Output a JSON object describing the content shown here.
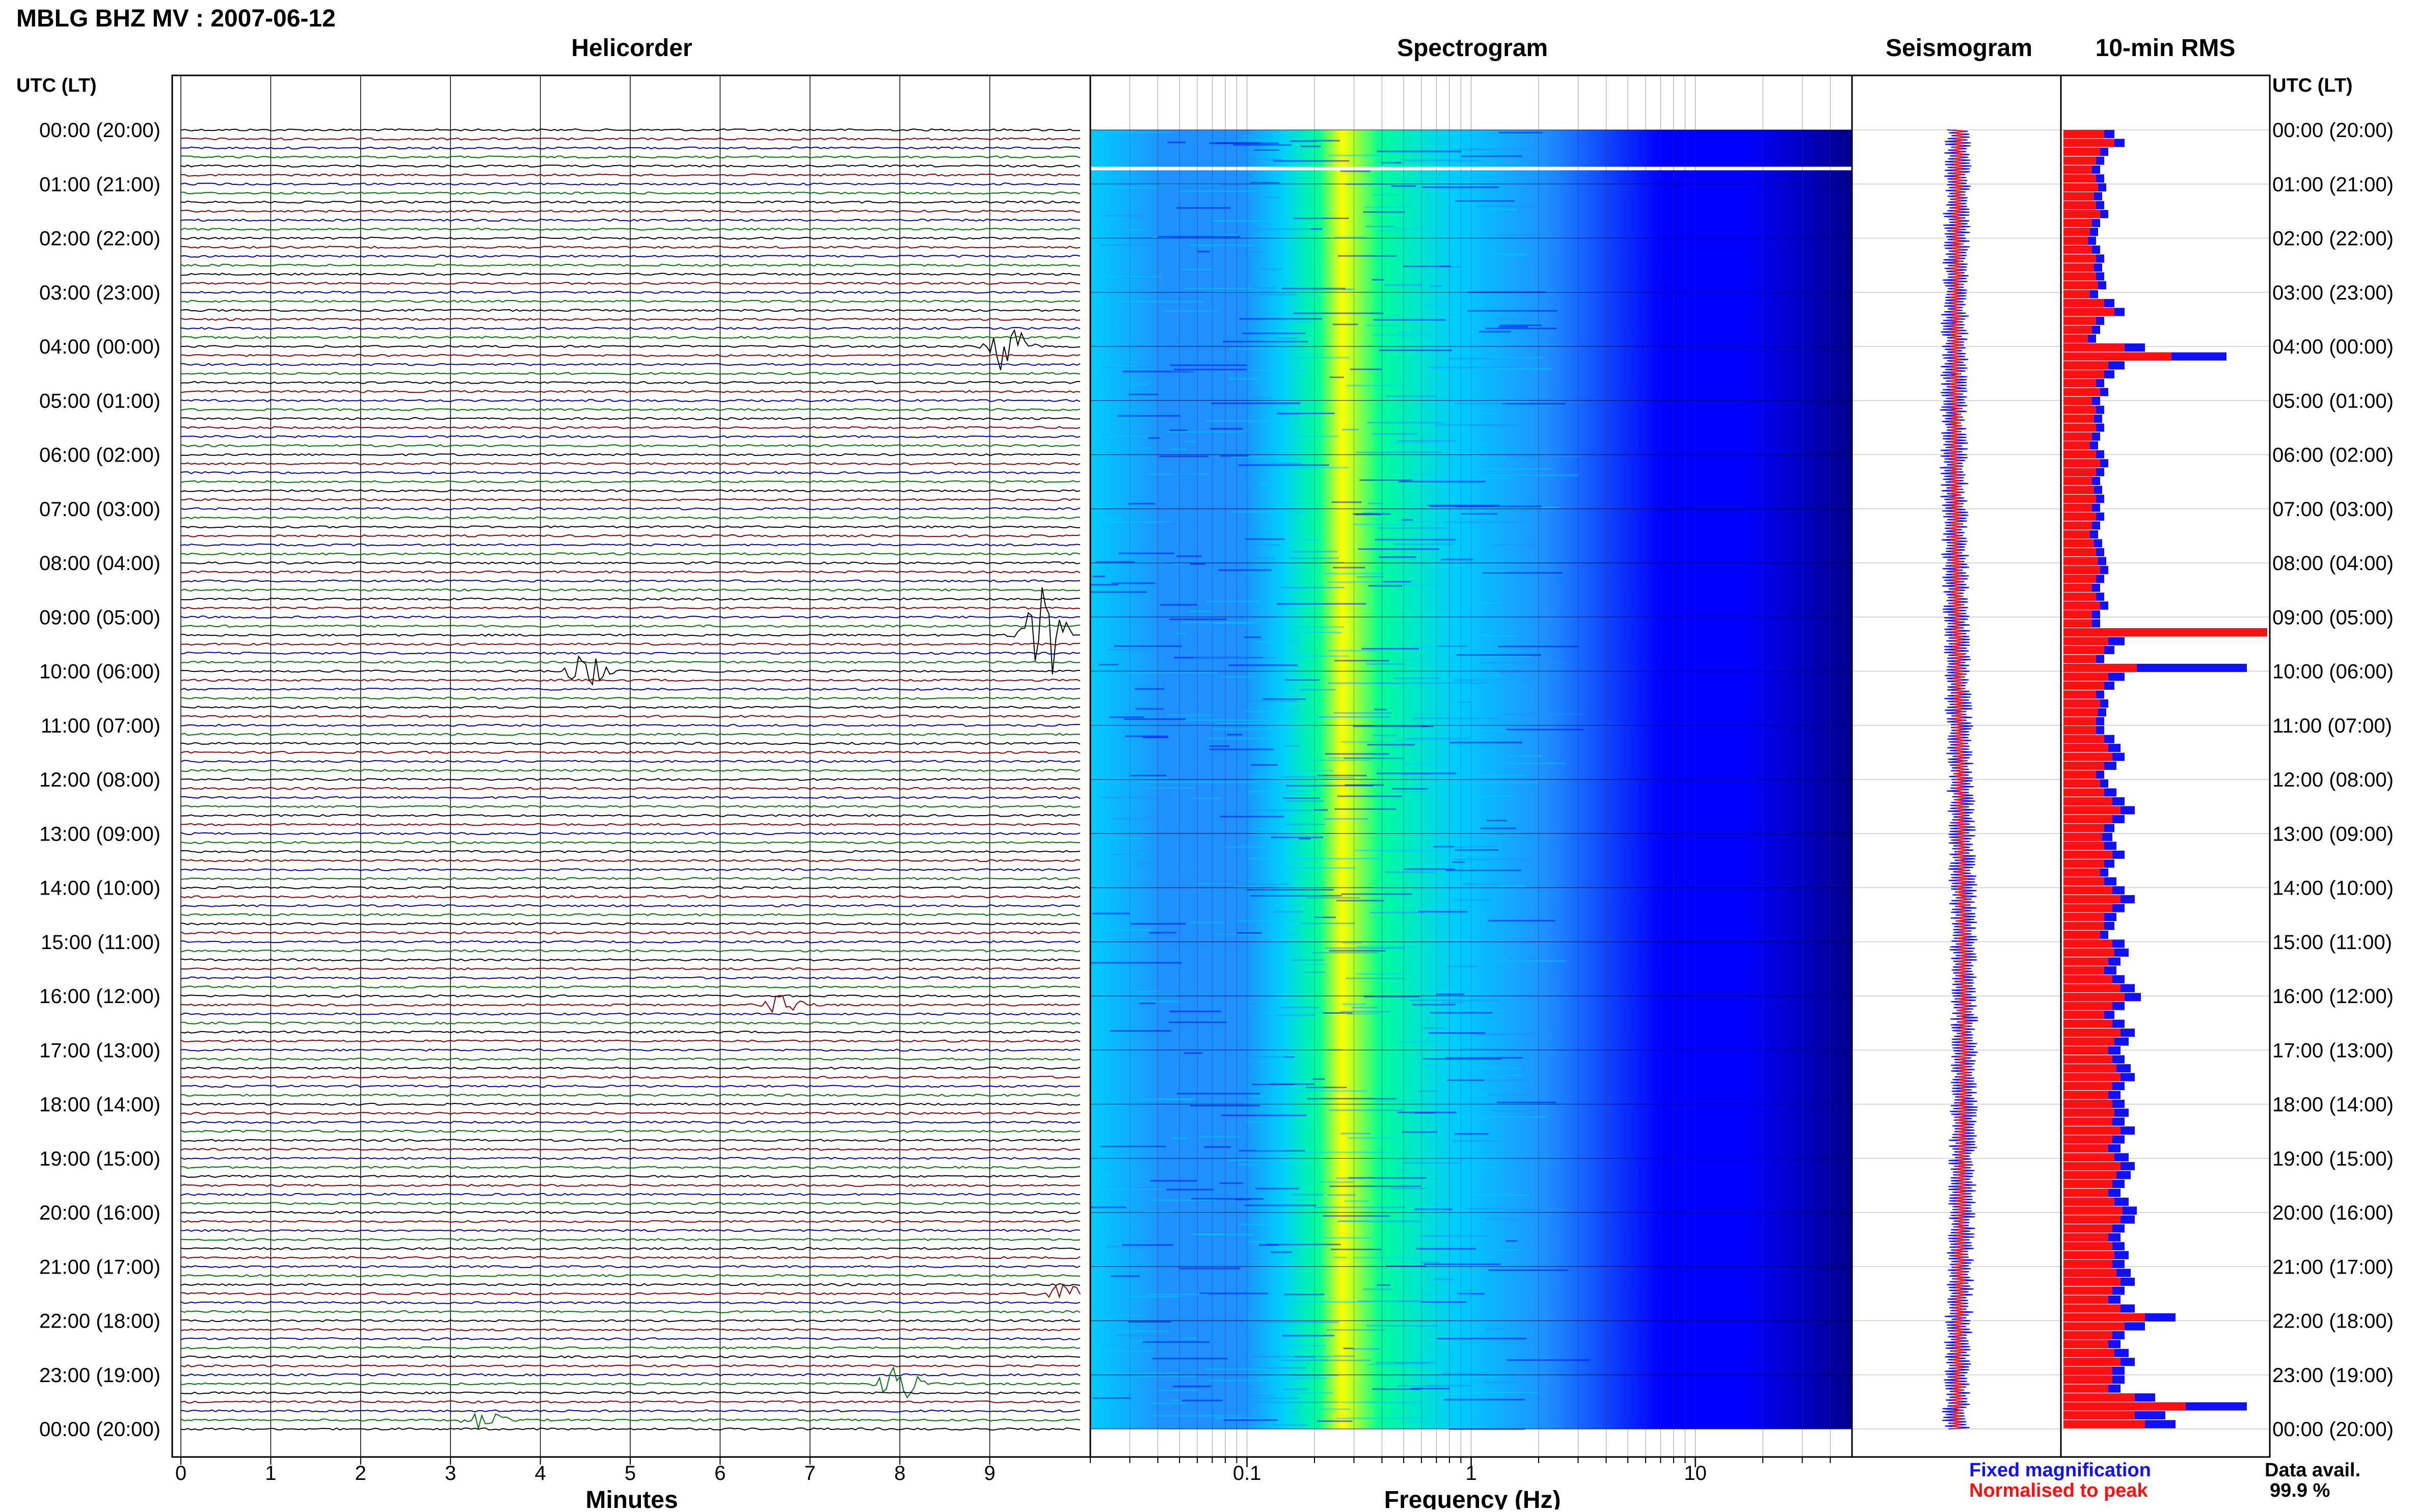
{
  "page": {
    "title": "MBLG BHZ MV : 2007-06-12"
  },
  "legend": {
    "fixed": "Fixed magnification",
    "fixed_color": "#1010ff",
    "normalised": "Normalised to peak",
    "normalised_color": "#ff1010"
  },
  "availability": {
    "label": "Data avail.",
    "value": "99.9 %"
  },
  "time_axis": {
    "header_left": "UTC (LT)",
    "header_right": "UTC (LT)",
    "labels": [
      "00:00 (20:00)",
      "01:00 (21:00)",
      "02:00 (22:00)",
      "03:00 (23:00)",
      "04:00 (00:00)",
      "05:00 (01:00)",
      "06:00 (02:00)",
      "07:00 (03:00)",
      "08:00 (04:00)",
      "09:00 (05:00)",
      "10:00 (06:00)",
      "11:00 (07:00)",
      "12:00 (08:00)",
      "13:00 (09:00)",
      "14:00 (10:00)",
      "15:00 (11:00)",
      "16:00 (12:00)",
      "17:00 (13:00)",
      "18:00 (14:00)",
      "19:00 (15:00)",
      "20:00 (16:00)",
      "21:00 (17:00)",
      "22:00 (18:00)",
      "23:00 (19:00)",
      "00:00 (20:00)"
    ]
  },
  "chart_data": [
    {
      "type": "line",
      "title": "Helicorder",
      "xlabel": "Minutes",
      "ylabel": "",
      "xlim": [
        0,
        10
      ],
      "ylim": [
        0,
        24
      ],
      "x_ticks": [
        "0",
        "1",
        "2",
        "3",
        "4",
        "5",
        "6",
        "7",
        "8",
        "9"
      ],
      "trace_colors": [
        "#000000",
        "#8b0000",
        "#0000aa",
        "#007700"
      ],
      "traces_per_day": 144,
      "events": [
        {
          "hour": 9.3,
          "minute": 9.6,
          "amplitude": 3.0,
          "color": "#0000aa"
        },
        {
          "hour": 4.0,
          "minute": 9.2,
          "amplitude": 1.4,
          "color": "#8b0000"
        },
        {
          "hour": 10.0,
          "minute": 4.5,
          "amplitude": 0.9,
          "color": "#8b0000"
        },
        {
          "hour": 23.1,
          "minute": 8.0,
          "amplitude": 1.1,
          "color": "#000000"
        },
        {
          "hour": 23.9,
          "minute": 3.4,
          "amplitude": 0.7,
          "color": "#007700"
        },
        {
          "hour": 21.5,
          "minute": 9.8,
          "amplitude": 0.6,
          "color": "#8b0000"
        },
        {
          "hour": 16.1,
          "minute": 6.7,
          "amplitude": 0.6,
          "color": "#8b0000"
        }
      ]
    },
    {
      "type": "heatmap",
      "title": "Spectrogram",
      "xlabel": "Frequency (Hz)",
      "ylabel": "",
      "x_scale": "log",
      "xlim": [
        0.02,
        50
      ],
      "ylim": [
        0,
        24
      ],
      "x_ticks": [
        "0.1",
        "1",
        "10"
      ],
      "colormap": [
        "#00008b",
        "#0000ff",
        "#1e90ff",
        "#00ccff",
        "#00ff99",
        "#ffff00"
      ]
    },
    {
      "type": "line",
      "title": "Seismogram",
      "xlabel": "",
      "ylabel": "",
      "ylim": [
        0,
        24
      ],
      "series": [
        {
          "values": [],
          "color": "#1010ff"
        },
        {
          "values": [],
          "color": "#ff1010"
        }
      ]
    },
    {
      "type": "bar",
      "title": "10-min RMS",
      "xlabel": "",
      "ylabel": "",
      "ylim": [
        0,
        24
      ],
      "orientation": "horizontal",
      "series": [
        {
          "color": "#1010ff",
          "values": [
            0.25,
            0.3,
            0.22,
            0.2,
            0.18,
            0.2,
            0.21,
            0.19,
            0.2,
            0.22,
            0.18,
            0.17,
            0.16,
            0.18,
            0.2,
            0.19,
            0.2,
            0.21,
            0.17,
            0.25,
            0.3,
            0.2,
            0.18,
            0.16,
            0.4,
            0.8,
            0.3,
            0.25,
            0.2,
            0.22,
            0.18,
            0.2,
            0.19,
            0.2,
            0.18,
            0.17,
            0.2,
            0.22,
            0.2,
            0.18,
            0.19,
            0.2,
            0.18,
            0.2,
            0.18,
            0.17,
            0.19,
            0.2,
            0.21,
            0.22,
            0.2,
            0.18,
            0.2,
            0.22,
            0.18,
            0.18,
            1.0,
            0.3,
            0.25,
            0.2,
            0.9,
            0.3,
            0.25,
            0.2,
            0.22,
            0.21,
            0.2,
            0.2,
            0.25,
            0.28,
            0.3,
            0.26,
            0.2,
            0.22,
            0.26,
            0.3,
            0.35,
            0.3,
            0.25,
            0.24,
            0.26,
            0.3,
            0.25,
            0.22,
            0.26,
            0.3,
            0.35,
            0.3,
            0.26,
            0.25,
            0.22,
            0.3,
            0.32,
            0.28,
            0.26,
            0.3,
            0.35,
            0.38,
            0.3,
            0.25,
            0.3,
            0.35,
            0.32,
            0.28,
            0.3,
            0.33,
            0.35,
            0.3,
            0.28,
            0.3,
            0.32,
            0.3,
            0.35,
            0.3,
            0.28,
            0.32,
            0.35,
            0.33,
            0.3,
            0.28,
            0.32,
            0.36,
            0.35,
            0.3,
            0.28,
            0.3,
            0.32,
            0.3,
            0.33,
            0.35,
            0.3,
            0.28,
            0.35,
            0.55,
            0.4,
            0.3,
            0.28,
            0.32,
            0.35,
            0.3,
            0.3,
            0.28,
            0.45,
            0.9,
            0.5,
            0.55
          ]
        },
        {
          "color": "#ff1010",
          "values": [
            0.2,
            0.25,
            0.18,
            0.16,
            0.14,
            0.16,
            0.17,
            0.15,
            0.16,
            0.18,
            0.14,
            0.13,
            0.12,
            0.14,
            0.16,
            0.15,
            0.16,
            0.17,
            0.13,
            0.2,
            0.25,
            0.16,
            0.14,
            0.12,
            0.3,
            0.53,
            0.22,
            0.2,
            0.16,
            0.18,
            0.14,
            0.16,
            0.15,
            0.16,
            0.14,
            0.13,
            0.16,
            0.18,
            0.16,
            0.14,
            0.15,
            0.16,
            0.14,
            0.16,
            0.14,
            0.13,
            0.15,
            0.16,
            0.17,
            0.18,
            0.16,
            0.14,
            0.16,
            0.18,
            0.14,
            0.14,
            1.0,
            0.22,
            0.2,
            0.16,
            0.36,
            0.22,
            0.2,
            0.16,
            0.18,
            0.17,
            0.16,
            0.16,
            0.2,
            0.22,
            0.24,
            0.2,
            0.16,
            0.18,
            0.2,
            0.24,
            0.28,
            0.24,
            0.2,
            0.19,
            0.2,
            0.24,
            0.2,
            0.18,
            0.2,
            0.24,
            0.28,
            0.24,
            0.2,
            0.2,
            0.18,
            0.24,
            0.25,
            0.22,
            0.2,
            0.24,
            0.28,
            0.3,
            0.24,
            0.2,
            0.24,
            0.28,
            0.25,
            0.22,
            0.24,
            0.26,
            0.28,
            0.24,
            0.22,
            0.24,
            0.25,
            0.24,
            0.28,
            0.24,
            0.22,
            0.25,
            0.28,
            0.26,
            0.24,
            0.22,
            0.25,
            0.29,
            0.28,
            0.24,
            0.22,
            0.24,
            0.25,
            0.24,
            0.26,
            0.28,
            0.24,
            0.22,
            0.28,
            0.4,
            0.3,
            0.24,
            0.22,
            0.25,
            0.28,
            0.24,
            0.24,
            0.22,
            0.35,
            0.6,
            0.35,
            0.4
          ]
        }
      ]
    }
  ]
}
